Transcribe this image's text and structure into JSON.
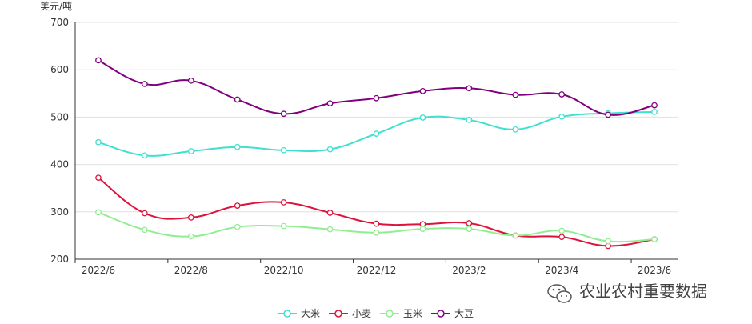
{
  "chart_data": {
    "type": "line",
    "y_unit": "美元/吨",
    "ylim": [
      200,
      700
    ],
    "y_ticks": [
      200,
      300,
      400,
      500,
      600,
      700
    ],
    "x": [
      "2022/6",
      "2022/7",
      "2022/8",
      "2022/9",
      "2022/10",
      "2022/11",
      "2022/12",
      "2023/1",
      "2023/2",
      "2023/3",
      "2023/4",
      "2023/5",
      "2023/6"
    ],
    "x_tick_labels": [
      "2022/6",
      "2022/8",
      "2022/10",
      "2022/12",
      "2023/2",
      "2023/4",
      "2023/6"
    ],
    "grid": "horizontal",
    "legend_position": "bottom",
    "smooth": true,
    "series": [
      {
        "name": "大米",
        "color": "#40e0d0",
        "values": [
          447,
          419,
          428,
          437,
          430,
          432,
          465,
          499,
          494,
          474,
          501,
          508,
          511
        ]
      },
      {
        "name": "小麦",
        "color": "#dc143c",
        "values": [
          372,
          297,
          288,
          313,
          320,
          298,
          275,
          274,
          276,
          250,
          247,
          228,
          242
        ]
      },
      {
        "name": "玉米",
        "color": "#90ee90",
        "values": [
          299,
          262,
          248,
          268,
          270,
          263,
          256,
          264,
          264,
          250,
          260,
          238,
          242
        ]
      },
      {
        "name": "大豆",
        "color": "#800080",
        "values": [
          620,
          570,
          577,
          537,
          507,
          529,
          540,
          555,
          561,
          547,
          548,
          505,
          525
        ]
      }
    ]
  },
  "watermark": {
    "text": "农业农村重要数据",
    "icon": "wechat-icon"
  }
}
